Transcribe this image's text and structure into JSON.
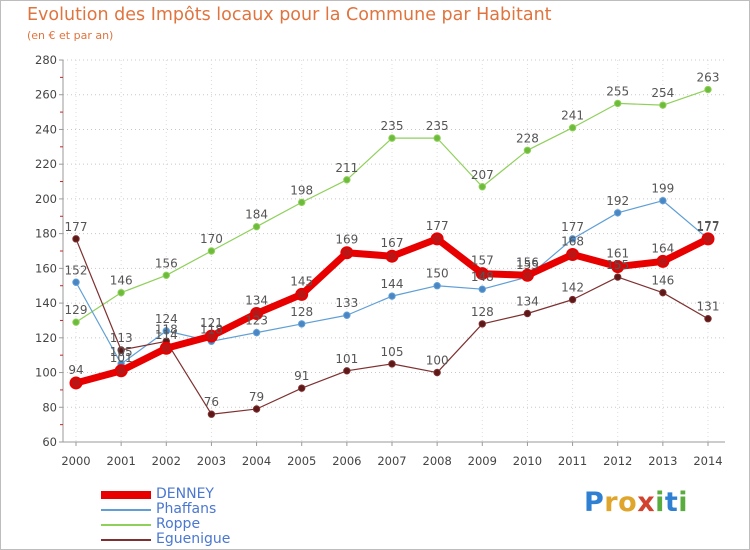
{
  "title": "Evolution des Impôts locaux pour la Commune par Habitant",
  "subtitle": "(en € et par an)",
  "logo": {
    "letters": [
      "P",
      "r",
      "o",
      "x",
      "i",
      "t",
      "i"
    ],
    "colors": [
      "#2f7fd3",
      "#e0a52b",
      "#e0a52b",
      "#d2432f",
      "#59ad3e",
      "#2f7fd3",
      "#59ad3e"
    ]
  },
  "chart_data": {
    "type": "line",
    "x": [
      2000,
      2001,
      2002,
      2003,
      2004,
      2005,
      2006,
      2007,
      2008,
      2009,
      2010,
      2011,
      2012,
      2013,
      2014
    ],
    "ylim": [
      60,
      280
    ],
    "yticks": [
      60,
      80,
      100,
      120,
      140,
      160,
      180,
      200,
      220,
      240,
      260,
      280
    ],
    "grid": "horizontal dotted",
    "legend_position": "bottom-left",
    "series": [
      {
        "name": "Roppe",
        "color": "#8fd05a",
        "dot": "#6dbb3a",
        "width": 1.2,
        "marker": 3.2,
        "values": [
          129,
          146,
          156,
          170,
          184,
          198,
          211,
          235,
          235,
          207,
          228,
          241,
          255,
          254,
          263
        ],
        "labels": [
          "129",
          "146",
          "156",
          "170",
          "184",
          "198",
          "211",
          "235",
          "235",
          "207",
          "228",
          "241",
          "255",
          "254",
          "263"
        ]
      },
      {
        "name": "Phaffans",
        "color": "#5f9fd6",
        "dot": "#4a86c4",
        "width": 1.2,
        "marker": 3.2,
        "values": [
          152,
          105,
          124,
          118,
          123,
          128,
          133,
          144,
          150,
          148,
          155,
          177,
          192,
          199,
          177
        ],
        "labels": [
          "152",
          "105",
          "124",
          "118",
          "123",
          "128",
          "133",
          "144",
          "150",
          "148",
          "155",
          "177",
          "192",
          "199",
          "177"
        ]
      },
      {
        "name": "Eguenigue",
        "color": "#7e3030",
        "dot": "#5e1818",
        "width": 1.2,
        "marker": 3.2,
        "values": [
          177,
          113,
          118,
          76,
          79,
          91,
          101,
          105,
          100,
          128,
          134,
          142,
          155,
          146,
          131
        ],
        "labels": [
          "177",
          "113",
          "118",
          "76",
          "79",
          "91",
          "101",
          "105",
          "100",
          "128",
          "134",
          "142",
          "155",
          "146",
          "131"
        ]
      },
      {
        "name": "DENNEY",
        "color": "#e80000",
        "dot": "#bb1616",
        "width": 7,
        "marker": 5.5,
        "values": [
          94,
          101,
          114,
          121,
          134,
          145,
          169,
          167,
          177,
          157,
          156,
          168,
          161,
          164,
          177
        ],
        "labels": [
          "94",
          "101",
          "114",
          "121",
          "134",
          "145",
          "169",
          "167",
          "177",
          "157",
          "156",
          "168",
          "161",
          "164",
          "177"
        ]
      }
    ],
    "legend_order": [
      "DENNEY",
      "Phaffans",
      "Roppe",
      "Eguenigue"
    ]
  }
}
